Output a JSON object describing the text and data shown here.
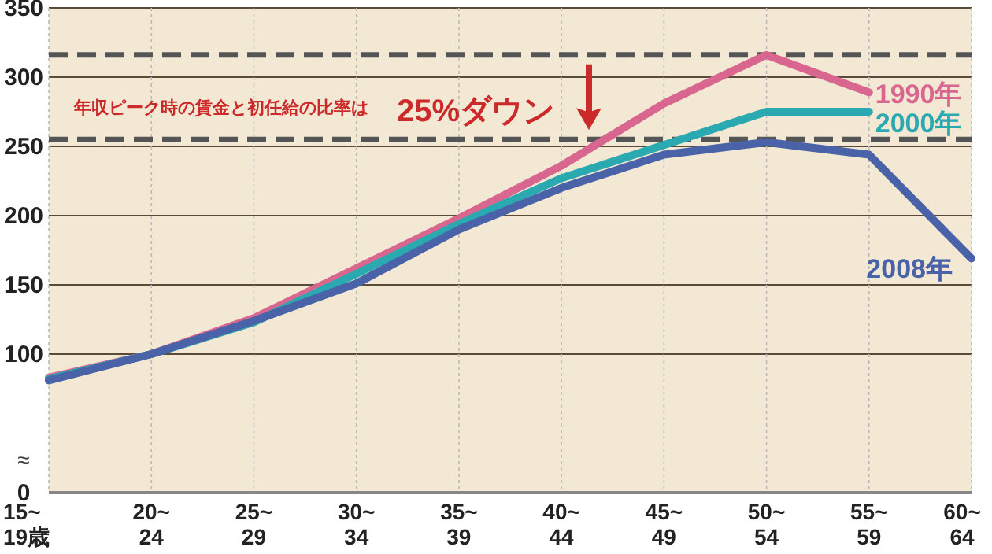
{
  "chart_data": {
    "type": "line",
    "categories": [
      "15~\n19歳",
      "20~\n24",
      "25~\n29",
      "30~\n34",
      "35~\n39",
      "40~\n44",
      "45~\n49",
      "50~\n54",
      "55~\n59",
      "60~\n64"
    ],
    "series": [
      {
        "name": "1990年",
        "color": "#d9668f",
        "values": [
          83,
          100,
          126,
          162,
          198,
          236,
          281,
          316,
          289,
          null
        ]
      },
      {
        "name": "2000年",
        "color": "#2aa9b0",
        "values": [
          82,
          100,
          123,
          158,
          194,
          227,
          251,
          275,
          275,
          null
        ]
      },
      {
        "name": "2008年",
        "color": "#4a63a8",
        "values": [
          81,
          100,
          124,
          151,
          190,
          220,
          244,
          253,
          244,
          169
        ]
      }
    ],
    "ylim": [
      0,
      350
    ],
    "yticks": [
      0,
      100,
      150,
      200,
      250,
      300,
      350
    ],
    "ref_lines": [
      {
        "axis": "y",
        "value": 316,
        "color": "#555555",
        "line_style": "dashed"
      },
      {
        "axis": "y",
        "value": 255,
        "color": "#555555",
        "line_style": "dashed"
      }
    ],
    "annotations": [
      "年収ピーク時の賃金と初任給の比率は",
      "25%ダウン",
      "≈"
    ],
    "grid": true,
    "legend": false,
    "marker": "none",
    "line_style": "solid"
  }
}
